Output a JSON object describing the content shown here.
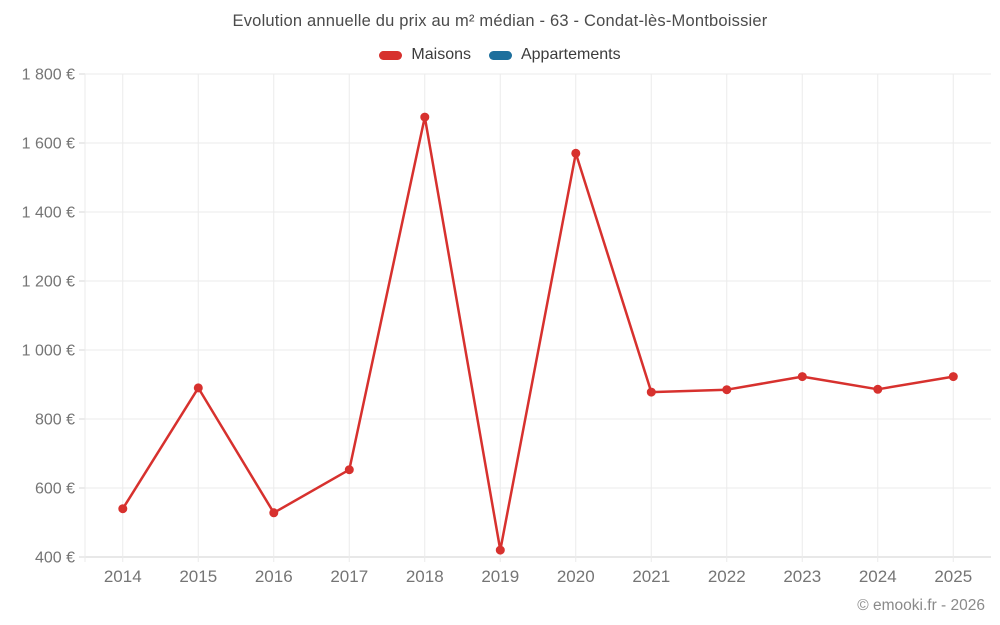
{
  "chart_data": {
    "type": "line",
    "title": "Evolution annuelle du prix au m² médian - 63 - Condat-lès-Montboissier",
    "categories": [
      "2014",
      "2015",
      "2016",
      "2017",
      "2018",
      "2019",
      "2020",
      "2021",
      "2022",
      "2023",
      "2024",
      "2025"
    ],
    "series": [
      {
        "name": "Maisons",
        "color": "#d7312e",
        "values": [
          540,
          890,
          528,
          653,
          1675,
          420,
          1570,
          878,
          885,
          923,
          886,
          923
        ]
      },
      {
        "name": "Appartements",
        "color": "#1d6f9d",
        "values": []
      }
    ],
    "xlabel": "",
    "ylabel": "",
    "ylim": [
      400,
      1800
    ],
    "ytick_step": 200,
    "ytick_labels": [
      "400 €",
      "600 €",
      "800 €",
      "1 000 €",
      "1 200 €",
      "1 400 €",
      "1 600 €",
      "1 800 €"
    ],
    "grid": true,
    "legend_position": "top",
    "footer": "© emooki.fr - 2026"
  },
  "colors": {
    "gridline": "#ebebeb",
    "axis_line": "#d2d2d2",
    "tick": "#d7d7d7",
    "tick_text": "#757575",
    "title_text": "#4b4b4b",
    "legend_text": "#3c3c3c",
    "footer_text": "#8a8a8a",
    "background": "#ffffff"
  }
}
